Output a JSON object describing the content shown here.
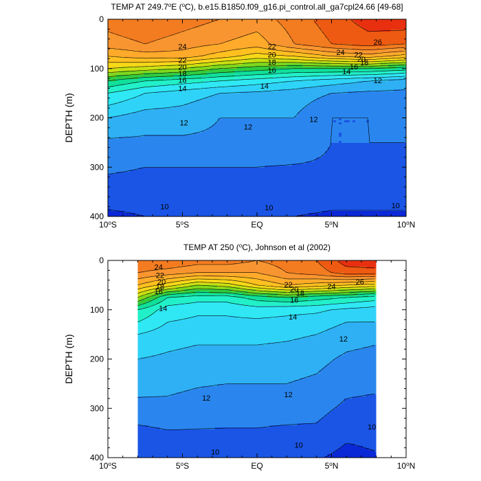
{
  "chart_data": [
    {
      "type": "heatmap",
      "title": "TEMP AT 249.7°E (°C), b.e15.B1850.f09_g16.pi_control.all_ga7cpl24.66 [49-68]",
      "title_parts": [
        "TEMP AT 249.7",
        "o",
        "E (",
        "o",
        "C), b.e15.B1850.f09_g16.pi_control.all_ga7cpl24.66 [49-68]"
      ],
      "xlabel": "",
      "ylabel": "DEPTH (m)",
      "x_ticks": [
        "10°S",
        "5°S",
        "EQ",
        "5°N",
        "10°N"
      ],
      "x_tick_parts": [
        [
          "10",
          "o",
          "S"
        ],
        [
          "5",
          "o",
          "S"
        ],
        [
          "EQ"
        ],
        [
          "5",
          "o",
          "N"
        ],
        [
          "10",
          "o",
          "N"
        ]
      ],
      "x_tick_values": [
        -10,
        -5,
        0,
        5,
        10
      ],
      "y_ticks": [
        "0",
        "100",
        "200",
        "300",
        "400"
      ],
      "y_tick_values": [
        0,
        100,
        200,
        300,
        400
      ],
      "xlim": [
        -10,
        10
      ],
      "ylim": [
        0,
        400
      ],
      "data_xlim": [
        -10,
        10
      ],
      "contour_levels": [
        10,
        11,
        12,
        13,
        14,
        15,
        16,
        17,
        18,
        19,
        20,
        21,
        22,
        23,
        24,
        25,
        26
      ],
      "depths": [
        0,
        50,
        75,
        100,
        125,
        150,
        200,
        250,
        300,
        350,
        400
      ],
      "latitudes": [
        -10,
        -7.5,
        -5,
        -2.5,
        0,
        2.5,
        5,
        7.5,
        10
      ],
      "temperature": [
        [
          24.5,
          25.0,
          24.5,
          24.0,
          23.5,
          24.5,
          25.5,
          26.5,
          26.8
        ],
        [
          23.5,
          24.0,
          23.5,
          23.0,
          22.5,
          24.0,
          25.0,
          25.5,
          25.0
        ],
        [
          22.0,
          22.5,
          22.5,
          21.5,
          20.5,
          21.0,
          22.0,
          22.5,
          21.5
        ],
        [
          20.0,
          19.5,
          19.0,
          18.0,
          17.5,
          17.0,
          17.0,
          17.0,
          16.5
        ],
        [
          17.0,
          16.0,
          15.5,
          15.0,
          14.5,
          14.0,
          13.5,
          13.0,
          12.5
        ],
        [
          15.0,
          14.0,
          13.5,
          13.0,
          12.8,
          12.5,
          12.0,
          11.8,
          11.8
        ],
        [
          13.0,
          12.5,
          12.5,
          12.0,
          12.0,
          12.0,
          11.0,
          11.0,
          11.2
        ],
        [
          11.8,
          11.8,
          11.8,
          11.8,
          11.8,
          11.8,
          11.0,
          11.0,
          11.0
        ],
        [
          11.2,
          11.0,
          11.0,
          11.0,
          11.0,
          10.9,
          10.8,
          10.8,
          10.8
        ],
        [
          10.5,
          10.5,
          10.5,
          10.5,
          10.5,
          10.4,
          10.3,
          10.3,
          10.3
        ],
        [
          9.8,
          10.0,
          10.0,
          10.1,
          10.1,
          10.0,
          9.9,
          9.9,
          9.9
        ]
      ],
      "contour_labels": [
        {
          "text": "24",
          "x": -5.0,
          "y": 55
        },
        {
          "text": "22",
          "x": -5.0,
          "y": 83
        },
        {
          "text": "20",
          "x": -5.0,
          "y": 97
        },
        {
          "text": "18",
          "x": -5.0,
          "y": 110
        },
        {
          "text": "16",
          "x": -5.0,
          "y": 123
        },
        {
          "text": "14",
          "x": -5.0,
          "y": 140
        },
        {
          "text": "22",
          "x": 1.0,
          "y": 55
        },
        {
          "text": "20",
          "x": 1.0,
          "y": 72
        },
        {
          "text": "18",
          "x": 1.0,
          "y": 87
        },
        {
          "text": "16",
          "x": 1.0,
          "y": 103
        },
        {
          "text": "14",
          "x": 0.5,
          "y": 135
        },
        {
          "text": "12",
          "x": -4.9,
          "y": 210
        },
        {
          "text": "12",
          "x": -0.6,
          "y": 218
        },
        {
          "text": "12",
          "x": 3.8,
          "y": 203
        },
        {
          "text": "26",
          "x": 8.1,
          "y": 46
        },
        {
          "text": "24",
          "x": 5.6,
          "y": 67
        },
        {
          "text": "22",
          "x": 6.8,
          "y": 72
        },
        {
          "text": "20",
          "x": 7.0,
          "y": 81
        },
        {
          "text": "18",
          "x": 7.2,
          "y": 88
        },
        {
          "text": "16",
          "x": 6.5,
          "y": 96
        },
        {
          "text": "14",
          "x": 6.0,
          "y": 106
        },
        {
          "text": "12",
          "x": 8.1,
          "y": 124
        },
        {
          "text": "10",
          "x": -6.2,
          "y": 380
        },
        {
          "text": "10",
          "x": 0.8,
          "y": 382
        },
        {
          "text": "10",
          "x": 9.3,
          "y": 378
        }
      ]
    },
    {
      "type": "heatmap",
      "title": "TEMP AT 250 (°C), Johnson et al (2002)",
      "title_parts": [
        "TEMP AT 250 (",
        "o",
        "C), Johnson et al (2002)"
      ],
      "xlabel": "",
      "ylabel": "DEPTH (m)",
      "x_ticks": [
        "10°S",
        "5°S",
        "EQ",
        "5°N",
        "10°N"
      ],
      "x_tick_parts": [
        [
          "10",
          "o",
          "S"
        ],
        [
          "5",
          "o",
          "S"
        ],
        [
          "EQ"
        ],
        [
          "5",
          "o",
          "N"
        ],
        [
          "10",
          "o",
          "N"
        ]
      ],
      "x_tick_values": [
        -10,
        -5,
        0,
        5,
        10
      ],
      "y_ticks": [
        "0",
        "100",
        "200",
        "300",
        "400"
      ],
      "y_tick_values": [
        0,
        100,
        200,
        300,
        400
      ],
      "xlim": [
        -10,
        10
      ],
      "ylim": [
        0,
        400
      ],
      "data_xlim": [
        -8,
        8
      ],
      "contour_levels": [
        10,
        11,
        12,
        13,
        14,
        15,
        16,
        17,
        18,
        19,
        20,
        21,
        22,
        23,
        24,
        25,
        26
      ],
      "depths": [
        0,
        25,
        50,
        75,
        100,
        125,
        150,
        200,
        250,
        300,
        350,
        400
      ],
      "latitudes": [
        -8,
        -6,
        -4,
        -2,
        0,
        2,
        4,
        6,
        8
      ],
      "temperature": [
        [
          25.0,
          25.0,
          24.5,
          24.5,
          24.0,
          24.5,
          25.0,
          26.5,
          26.8
        ],
        [
          24.0,
          23.5,
          23.0,
          23.0,
          23.0,
          24.0,
          24.5,
          25.5,
          25.5
        ],
        [
          22.0,
          20.5,
          19.0,
          19.5,
          21.0,
          22.0,
          21.5,
          21.0,
          20.5
        ],
        [
          19.0,
          16.0,
          15.5,
          15.5,
          16.5,
          17.0,
          16.5,
          16.0,
          15.5
        ],
        [
          16.0,
          14.5,
          14.2,
          14.2,
          14.5,
          14.3,
          14.2,
          13.8,
          13.5
        ],
        [
          15.0,
          14.0,
          13.8,
          13.8,
          13.8,
          13.7,
          13.5,
          13.0,
          13.0
        ],
        [
          14.0,
          13.5,
          13.3,
          13.3,
          13.3,
          13.2,
          13.0,
          12.5,
          12.3
        ],
        [
          13.0,
          12.8,
          12.6,
          12.6,
          12.6,
          12.5,
          12.3,
          11.8,
          11.6
        ],
        [
          12.5,
          12.3,
          12.1,
          12.0,
          12.0,
          12.0,
          11.8,
          11.3,
          11.2
        ],
        [
          11.6,
          11.7,
          11.5,
          11.4,
          11.4,
          11.4,
          11.3,
          10.8,
          10.7
        ],
        [
          10.7,
          10.9,
          10.9,
          10.9,
          10.9,
          10.8,
          10.8,
          10.2,
          10.3
        ],
        [
          10.0,
          10.1,
          10.2,
          10.1,
          10.1,
          10.1,
          10.1,
          9.7,
          9.9
        ]
      ],
      "contour_labels": [
        {
          "text": "24",
          "x": -6.6,
          "y": 13
        },
        {
          "text": "22",
          "x": -6.5,
          "y": 30
        },
        {
          "text": "20",
          "x": -6.4,
          "y": 43
        },
        {
          "text": "18",
          "x": -6.5,
          "y": 53
        },
        {
          "text": "16",
          "x": -6.6,
          "y": 63
        },
        {
          "text": "14",
          "x": -6.3,
          "y": 97
        },
        {
          "text": "22",
          "x": 2.1,
          "y": 49
        },
        {
          "text": "20",
          "x": 2.5,
          "y": 58
        },
        {
          "text": "18",
          "x": 2.9,
          "y": 66
        },
        {
          "text": "16",
          "x": 2.5,
          "y": 80
        },
        {
          "text": "14",
          "x": 2.4,
          "y": 114
        },
        {
          "text": "24",
          "x": 5.0,
          "y": 52
        },
        {
          "text": "26",
          "x": 6.9,
          "y": 43
        },
        {
          "text": "12",
          "x": 5.8,
          "y": 159
        },
        {
          "text": "12",
          "x": -3.4,
          "y": 279
        },
        {
          "text": "12",
          "x": 2.1,
          "y": 272
        },
        {
          "text": "10",
          "x": -2.8,
          "y": 388
        },
        {
          "text": "10",
          "x": 2.8,
          "y": 374
        },
        {
          "text": "10",
          "x": 7.7,
          "y": 337
        }
      ]
    }
  ]
}
